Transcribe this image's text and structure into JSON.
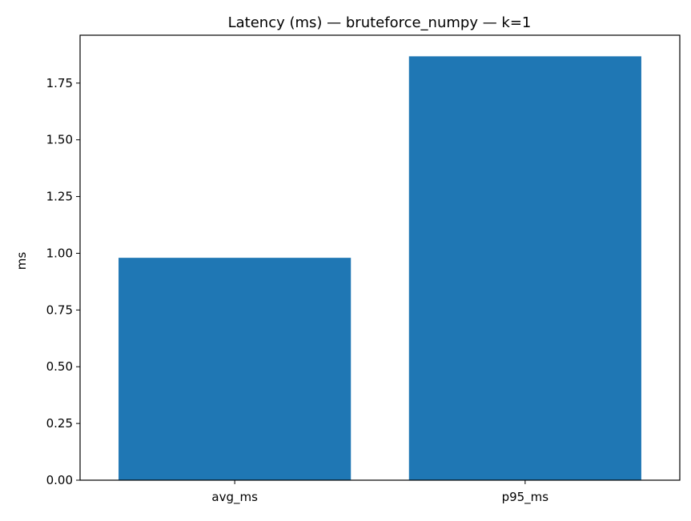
{
  "chart_data": {
    "type": "bar",
    "title": "Latency (ms) — bruteforce_numpy — k=1",
    "xlabel": "",
    "ylabel": "ms",
    "categories": [
      "avg_ms",
      "p95_ms"
    ],
    "values": [
      0.98,
      1.868
    ],
    "ylim": [
      0,
      1.961
    ],
    "yticks": [
      0.0,
      0.25,
      0.5,
      0.75,
      1.0,
      1.25,
      1.5,
      1.75
    ],
    "ytick_labels": [
      "0.00",
      "0.25",
      "0.50",
      "0.75",
      "1.00",
      "1.25",
      "1.50",
      "1.75"
    ],
    "bar_color": "#1f77b4",
    "grid": false,
    "legend": "none"
  }
}
